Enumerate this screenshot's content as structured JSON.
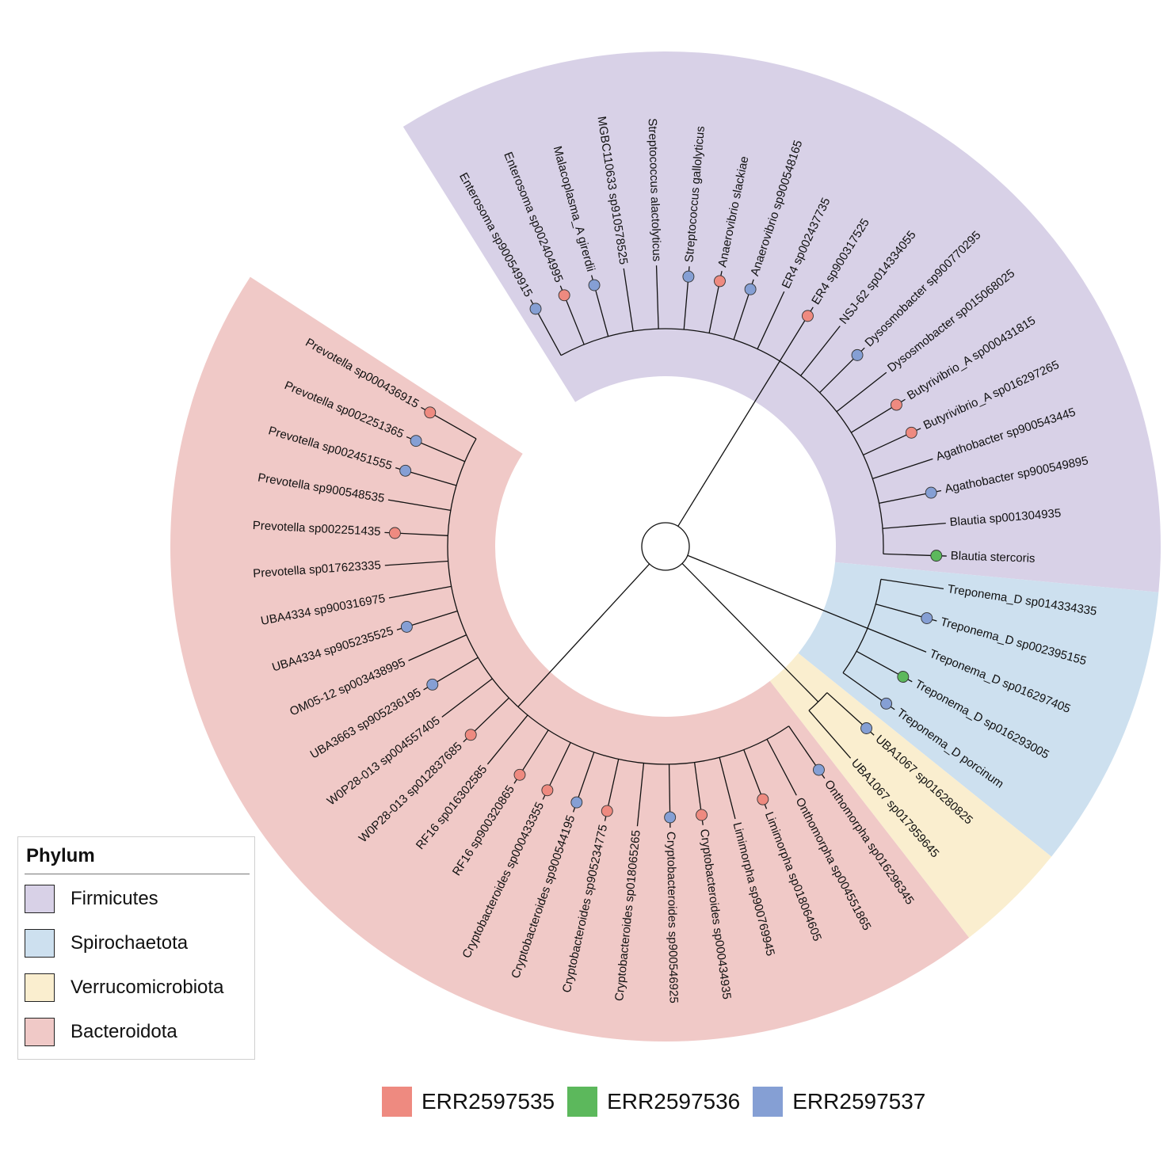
{
  "phylum_legend": {
    "title": "Phylum",
    "items": [
      {
        "label": "Firmicutes",
        "color": "#d8d1e7"
      },
      {
        "label": "Spirochaetota",
        "color": "#cde0ef"
      },
      {
        "label": "Verrucomicrobiota",
        "color": "#faeecf"
      },
      {
        "label": "Bacteroidota",
        "color": "#f0c9c7"
      }
    ]
  },
  "sample_legend": {
    "items": [
      {
        "label": "ERR2597535",
        "color": "#ee8a80"
      },
      {
        "label": "ERR2597536",
        "color": "#5cb85c"
      },
      {
        "label": "ERR2597537",
        "color": "#859fd4"
      }
    ]
  },
  "tree": {
    "leaves": [
      {
        "label": "Enterosoma sp900549915",
        "phylum": "Firmicutes",
        "sample": "ERR2597537"
      },
      {
        "label": "Enterosoma sp002404995",
        "phylum": "Firmicutes",
        "sample": "ERR2597535"
      },
      {
        "label": "Malacoplasma_A girerdii",
        "phylum": "Firmicutes",
        "sample": "ERR2597537"
      },
      {
        "label": "MGBC110633 sp910578525",
        "phylum": "Firmicutes",
        "sample": null
      },
      {
        "label": "Streptococcus alactolyticus",
        "phylum": "Firmicutes",
        "sample": null
      },
      {
        "label": "Streptococcus gallolyticus",
        "phylum": "Firmicutes",
        "sample": "ERR2597537"
      },
      {
        "label": "Anaerovibrio slackiae",
        "phylum": "Firmicutes",
        "sample": "ERR2597535"
      },
      {
        "label": "Anaerovibrio sp900548165",
        "phylum": "Firmicutes",
        "sample": "ERR2597537"
      },
      {
        "label": "ER4 sp002437735",
        "phylum": "Firmicutes",
        "sample": null
      },
      {
        "label": "ER4 sp900317525",
        "phylum": "Firmicutes",
        "sample": "ERR2597535"
      },
      {
        "label": "NSJ-62 sp014334055",
        "phylum": "Firmicutes",
        "sample": null
      },
      {
        "label": "Dysosmobacter sp900770295",
        "phylum": "Firmicutes",
        "sample": "ERR2597537"
      },
      {
        "label": "Dysosmobacter sp015068025",
        "phylum": "Firmicutes",
        "sample": null
      },
      {
        "label": "Butyrivibrio_A sp000431815",
        "phylum": "Firmicutes",
        "sample": "ERR2597535"
      },
      {
        "label": "Butyrivibrio_A sp016297265",
        "phylum": "Firmicutes",
        "sample": "ERR2597535"
      },
      {
        "label": "Agathobacter sp900543445",
        "phylum": "Firmicutes",
        "sample": null
      },
      {
        "label": "Agathobacter sp900549895",
        "phylum": "Firmicutes",
        "sample": "ERR2597537"
      },
      {
        "label": "Blautia sp001304935",
        "phylum": "Firmicutes",
        "sample": null
      },
      {
        "label": "Blautia stercoris",
        "phylum": "Firmicutes",
        "sample": "ERR2597536"
      },
      {
        "label": "Treponema_D sp014334335",
        "phylum": "Spirochaetota",
        "sample": null
      },
      {
        "label": "Treponema_D sp002395155",
        "phylum": "Spirochaetota",
        "sample": "ERR2597537"
      },
      {
        "label": "Treponema_D sp016297405",
        "phylum": "Spirochaetota",
        "sample": null
      },
      {
        "label": "Treponema_D sp016293005",
        "phylum": "Spirochaetota",
        "sample": "ERR2597536"
      },
      {
        "label": "Treponema_D porcinum",
        "phylum": "Spirochaetota",
        "sample": "ERR2597537"
      },
      {
        "label": "UBA1067 sp016280825",
        "phylum": "Verrucomicrobiota",
        "sample": "ERR2597537"
      },
      {
        "label": "UBA1067 sp017959645",
        "phylum": "Verrucomicrobiota",
        "sample": null
      },
      {
        "label": "Onthomorpha sp016296345",
        "phylum": "Bacteroidota",
        "sample": "ERR2597537"
      },
      {
        "label": "Onthomorpha sp004551865",
        "phylum": "Bacteroidota",
        "sample": null
      },
      {
        "label": "Limimorpha sp018064605",
        "phylum": "Bacteroidota",
        "sample": "ERR2597535"
      },
      {
        "label": "Limimorpha sp900769945",
        "phylum": "Bacteroidota",
        "sample": null
      },
      {
        "label": "Cryptobacteroides sp000434935",
        "phylum": "Bacteroidota",
        "sample": "ERR2597535"
      },
      {
        "label": "Cryptobacteroides sp900546925",
        "phylum": "Bacteroidota",
        "sample": "ERR2597537"
      },
      {
        "label": "Cryptobacteroides sp018065265",
        "phylum": "Bacteroidota",
        "sample": null
      },
      {
        "label": "Cryptobacteroides sp905234775",
        "phylum": "Bacteroidota",
        "sample": "ERR2597535"
      },
      {
        "label": "Cryptobacteroides sp900544195",
        "phylum": "Bacteroidota",
        "sample": "ERR2597537"
      },
      {
        "label": "Cryptobacteroides sp000433355",
        "phylum": "Bacteroidota",
        "sample": "ERR2597535"
      },
      {
        "label": "RF16 sp900320865",
        "phylum": "Bacteroidota",
        "sample": "ERR2597535"
      },
      {
        "label": "RF16 sp016302585",
        "phylum": "Bacteroidota",
        "sample": null
      },
      {
        "label": "W0P28-013 sp012837685",
        "phylum": "Bacteroidota",
        "sample": "ERR2597535"
      },
      {
        "label": "W0P28-013 sp004557405",
        "phylum": "Bacteroidota",
        "sample": null
      },
      {
        "label": "UBA3663 sp905236195",
        "phylum": "Bacteroidota",
        "sample": "ERR2597537"
      },
      {
        "label": "OM05-12 sp003438995",
        "phylum": "Bacteroidota",
        "sample": null
      },
      {
        "label": "UBA4334 sp905235525",
        "phylum": "Bacteroidota",
        "sample": "ERR2597537"
      },
      {
        "label": "UBA4334 sp900316975",
        "phylum": "Bacteroidota",
        "sample": null
      },
      {
        "label": "Prevotella sp017623335",
        "phylum": "Bacteroidota",
        "sample": null
      },
      {
        "label": "Prevotella sp002251435",
        "phylum": "Bacteroidota",
        "sample": "ERR2597535"
      },
      {
        "label": "Prevotella sp900548535",
        "phylum": "Bacteroidota",
        "sample": null
      },
      {
        "label": "Prevotella sp002451555",
        "phylum": "Bacteroidota",
        "sample": "ERR2597537"
      },
      {
        "label": "Prevotella sp002251365",
        "phylum": "Bacteroidota",
        "sample": "ERR2597537"
      },
      {
        "label": "Prevotella sp000436915",
        "phylum": "Bacteroidota",
        "sample": "ERR2597535"
      }
    ]
  }
}
